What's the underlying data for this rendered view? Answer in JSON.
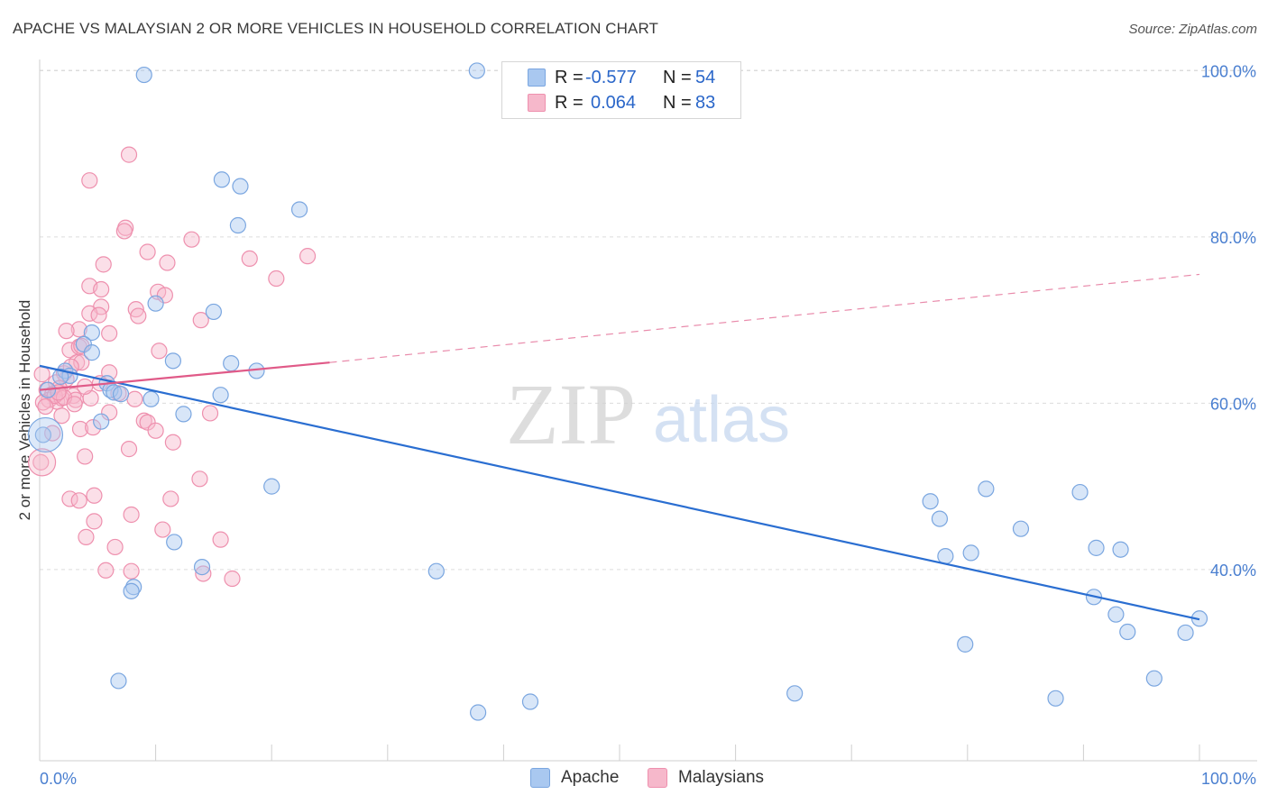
{
  "header": {
    "title": "APACHE VS MALAYSIAN 2 OR MORE VEHICLES IN HOUSEHOLD CORRELATION CHART",
    "source": "Source: ZipAtlas.com"
  },
  "stats": {
    "r_label": "R =",
    "n_label": "N =",
    "rows": [
      {
        "r": "-0.577",
        "n": "54"
      },
      {
        "r": "0.064",
        "n": "83"
      }
    ]
  },
  "legend": {
    "items": [
      "Apache",
      "Malaysians"
    ]
  },
  "watermark": {
    "zip": "ZIP",
    "atlas": "atlas"
  },
  "colors": {
    "apache_fill": "#a9c8f0",
    "apache_stroke": "#7aa6e0",
    "apache_line": "#2a6ed1",
    "malaysian_fill": "#f6b8cb",
    "malaysian_stroke": "#ee90ae",
    "malaysian_line": "#e05a88",
    "tick_label": "#4a7fd0",
    "grid": "#dcdcdc"
  },
  "chart_data": {
    "type": "scatter",
    "title": "APACHE VS MALAYSIAN 2 OR MORE VEHICLES IN HOUSEHOLD CORRELATION CHART",
    "xlabel": "",
    "ylabel": "2 or more Vehicles in Household",
    "xlim": [
      0,
      100
    ],
    "ylim": [
      17,
      102
    ],
    "x_tick_labels": [
      "0.0%",
      "100.0%"
    ],
    "y_ticks": [
      40,
      60,
      80,
      100
    ],
    "y_tick_labels": [
      "40.0%",
      "60.0%",
      "80.0%",
      "100.0%"
    ],
    "grid": true,
    "legend_position": "bottom-center",
    "series": [
      {
        "name": "Apache",
        "r": -0.577,
        "n": 54,
        "trend": {
          "x": [
            0,
            100
          ],
          "y": [
            64.5,
            34.0
          ],
          "dashed_extension": false
        },
        "points": [
          [
            9,
            99.5
          ],
          [
            37.7,
            100
          ],
          [
            15.7,
            86.9
          ],
          [
            17.3,
            86.1
          ],
          [
            22.4,
            83.3
          ],
          [
            17.1,
            81.4
          ],
          [
            10,
            72
          ],
          [
            15,
            71
          ],
          [
            4.5,
            68.5
          ],
          [
            3.8,
            67.1
          ],
          [
            4.5,
            66.1
          ],
          [
            11.5,
            65.1
          ],
          [
            16.5,
            64.8
          ],
          [
            18.7,
            63.9
          ],
          [
            2.2,
            63.9
          ],
          [
            2.6,
            63.3
          ],
          [
            1.8,
            63.2
          ],
          [
            5.8,
            62.4
          ],
          [
            6.1,
            61.6
          ],
          [
            6.4,
            61.3
          ],
          [
            7,
            61.1
          ],
          [
            9.6,
            60.5
          ],
          [
            15.6,
            61
          ],
          [
            12.4,
            58.7
          ],
          [
            5.3,
            57.8
          ],
          [
            0.3,
            56.2
          ],
          [
            20,
            50
          ],
          [
            11.6,
            43.3
          ],
          [
            14,
            40.3
          ],
          [
            8.1,
            37.9
          ],
          [
            7.9,
            37.4
          ],
          [
            34.2,
            39.8
          ],
          [
            6.8,
            26.6
          ],
          [
            37.8,
            22.8
          ],
          [
            42.3,
            24.1
          ],
          [
            65.1,
            25.1
          ],
          [
            76.8,
            48.2
          ],
          [
            77.6,
            46.1
          ],
          [
            78.1,
            41.6
          ],
          [
            80.3,
            42.0
          ],
          [
            81.6,
            49.7
          ],
          [
            84.6,
            44.9
          ],
          [
            89.7,
            49.3
          ],
          [
            91.1,
            42.6
          ],
          [
            93.2,
            42.4
          ],
          [
            90.9,
            36.7
          ],
          [
            92.8,
            34.6
          ],
          [
            93.8,
            32.5
          ],
          [
            96.1,
            26.9
          ],
          [
            100,
            34.1
          ],
          [
            98.8,
            32.4
          ],
          [
            79.8,
            31.0
          ],
          [
            87.6,
            24.5
          ],
          [
            0.7,
            61.6
          ]
        ]
      },
      {
        "name": "Malaysians",
        "r": 0.064,
        "n": 83,
        "trend": {
          "x": [
            0,
            25
          ],
          "y": [
            61.6,
            64.9
          ],
          "dashed_to": [
            100,
            75.5
          ]
        },
        "points": [
          [
            7.7,
            89.9
          ],
          [
            4.3,
            86.8
          ],
          [
            7.4,
            81.1
          ],
          [
            7.3,
            80.7
          ],
          [
            13.1,
            79.7
          ],
          [
            9.3,
            78.2
          ],
          [
            18.1,
            77.4
          ],
          [
            23.1,
            77.7
          ],
          [
            11,
            76.9
          ],
          [
            5.5,
            76.7
          ],
          [
            20.4,
            75
          ],
          [
            4.3,
            74.1
          ],
          [
            5.3,
            73.7
          ],
          [
            10.2,
            73.4
          ],
          [
            10.8,
            73
          ],
          [
            5.3,
            71.6
          ],
          [
            4.3,
            70.8
          ],
          [
            8.3,
            71.3
          ],
          [
            8.5,
            70.5
          ],
          [
            5.1,
            70.6
          ],
          [
            13.9,
            70
          ],
          [
            3.4,
            68.9
          ],
          [
            2.3,
            68.7
          ],
          [
            6,
            68.4
          ],
          [
            10.3,
            66.3
          ],
          [
            2.6,
            66.4
          ],
          [
            3.4,
            66.8
          ],
          [
            3.6,
            66.9
          ],
          [
            3.2,
            64.9
          ],
          [
            3.6,
            64.9
          ],
          [
            2.1,
            63.6
          ],
          [
            6,
            63.7
          ],
          [
            2.3,
            62.9
          ],
          [
            0.2,
            63.5
          ],
          [
            1.4,
            62.5
          ],
          [
            0.6,
            61.6
          ],
          [
            1.7,
            61.8
          ],
          [
            5.2,
            62.4
          ],
          [
            1.1,
            61.1
          ],
          [
            2.9,
            60.9
          ],
          [
            0.8,
            60.4
          ],
          [
            1.5,
            60.2
          ],
          [
            1.9,
            60.6
          ],
          [
            3.1,
            60.4
          ],
          [
            4.4,
            60.6
          ],
          [
            6.8,
            61.2
          ],
          [
            8.2,
            60.5
          ],
          [
            14.7,
            58.8
          ],
          [
            6,
            58.9
          ],
          [
            9,
            57.9
          ],
          [
            1.9,
            58.5
          ],
          [
            9.3,
            57.7
          ],
          [
            3.5,
            56.9
          ],
          [
            4.6,
            57.1
          ],
          [
            10,
            56.7
          ],
          [
            1.1,
            56.4
          ],
          [
            11.5,
            55.3
          ],
          [
            7.7,
            54.5
          ],
          [
            3.9,
            53.6
          ],
          [
            0.1,
            52.9
          ],
          [
            13.8,
            50.9
          ],
          [
            4.7,
            48.9
          ],
          [
            2.6,
            48.5
          ],
          [
            3.4,
            48.3
          ],
          [
            11.3,
            48.5
          ],
          [
            7.9,
            46.6
          ],
          [
            4.7,
            45.8
          ],
          [
            10.6,
            44.8
          ],
          [
            4,
            43.9
          ],
          [
            15.6,
            43.6
          ],
          [
            6.5,
            42.7
          ],
          [
            5.7,
            39.9
          ],
          [
            7.9,
            39.8
          ],
          [
            14.1,
            39.5
          ],
          [
            16.6,
            38.9
          ],
          [
            0.3,
            60.1
          ],
          [
            1.3,
            60.9
          ],
          [
            2.1,
            60.7
          ],
          [
            0.5,
            59.6
          ],
          [
            3,
            59.9
          ],
          [
            1.6,
            61.3
          ],
          [
            3.9,
            62.0
          ],
          [
            2.7,
            64.4
          ]
        ]
      }
    ]
  }
}
